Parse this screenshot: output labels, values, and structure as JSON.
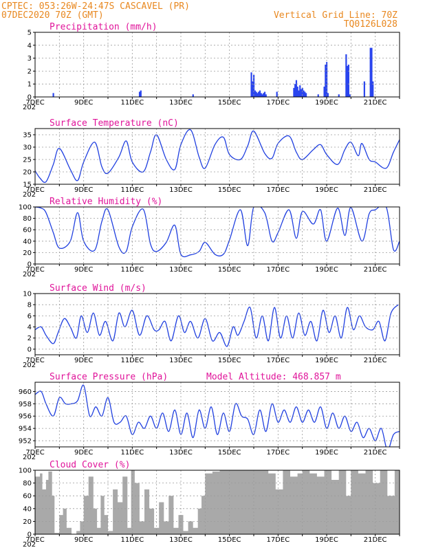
{
  "header": {
    "line1": "CPTEC:  053:26W-24:47S  CASCAVEL (PR)",
    "line2": "07DEC2020 70Z (GMT)",
    "grid_note": "Vertical Grid Line: 70Z",
    "code": "TQ0126L028"
  },
  "x_axis": {
    "range_days": [
      7,
      22
    ],
    "labeled_days": [
      7,
      9,
      11,
      13,
      15,
      17,
      19,
      21
    ],
    "label_suffix": "DEC",
    "year_fragment": "202"
  },
  "panels": [
    {
      "key": "precip",
      "title": "Precipitation (mm/h)",
      "ylim": [
        0,
        5
      ],
      "yticks": [
        0,
        1,
        2,
        3,
        4,
        5
      ]
    },
    {
      "key": "temp",
      "title": "Surface Temperature (nC)",
      "ylim": [
        15,
        37.5
      ],
      "yticks": [
        15,
        20,
        25,
        30,
        35
      ]
    },
    {
      "key": "rh",
      "title": "Relative Humidity (%)",
      "ylim": [
        0,
        100
      ],
      "yticks": [
        0,
        20,
        40,
        60,
        80,
        100
      ]
    },
    {
      "key": "wind",
      "title": "Surface Wind (m/s)",
      "ylim": [
        -1,
        10
      ],
      "yticks": [
        0,
        2,
        4,
        6,
        8,
        10
      ]
    },
    {
      "key": "pres",
      "title": "Surface Pressure (hPa)",
      "subtitle": "Model Altitude: 468.857 m",
      "ylim": [
        951,
        961.5
      ],
      "yticks": [
        952,
        954,
        956,
        958,
        960
      ]
    },
    {
      "key": "cloud",
      "title": "Cloud Cover (%)",
      "ylim": [
        0,
        100
      ],
      "yticks": [
        0,
        20,
        40,
        60,
        80,
        100
      ]
    }
  ],
  "colors": {
    "line": "#1f3fe0",
    "bar": "#2a45ee",
    "cloud": "#a9a9a9",
    "grid": "#9a9a9a",
    "header": "#e8871e",
    "title": "#e0149a"
  },
  "chart_data": [
    {
      "type": "bar",
      "title": "Precipitation (mm/h)",
      "ylim": [
        0,
        5
      ],
      "x": [
        7.75,
        11.3,
        11.35,
        13.5,
        15.9,
        15.95,
        16.0,
        16.05,
        16.1,
        16.15,
        16.2,
        16.25,
        16.3,
        16.35,
        16.4,
        16.45,
        16.5,
        16.95,
        17.65,
        17.7,
        17.75,
        17.8,
        17.85,
        17.9,
        17.95,
        18.0,
        18.05,
        18.1,
        18.15,
        18.65,
        18.9,
        18.95,
        19.0,
        19.05,
        19.5,
        19.8,
        19.85,
        19.9,
        19.95,
        20.55,
        20.8,
        20.85,
        20.9
      ],
      "values": [
        0.3,
        0.4,
        0.5,
        0.2,
        1.9,
        1.2,
        1.7,
        0.5,
        0.4,
        0.3,
        0.4,
        0.5,
        0.3,
        0.2,
        0.3,
        0.4,
        0.2,
        0.4,
        0.7,
        1.0,
        1.3,
        0.8,
        0.5,
        0.9,
        0.6,
        0.7,
        0.5,
        0.4,
        0.3,
        0.2,
        0.8,
        2.5,
        2.7,
        0.3,
        0.2,
        3.3,
        2.4,
        2.5,
        0.2,
        1.2,
        3.8,
        3.8,
        1.2
      ]
    },
    {
      "type": "line",
      "title": "Surface Temperature (nC)",
      "ylim": [
        15,
        37.5
      ],
      "x": [
        7.0,
        7.2,
        7.45,
        7.75,
        8.0,
        8.45,
        8.75,
        9.0,
        9.45,
        9.75,
        10.0,
        10.45,
        10.75,
        11.0,
        11.45,
        11.75,
        12.0,
        12.4,
        12.75,
        13.0,
        13.4,
        13.75,
        14.0,
        14.4,
        14.75,
        15.0,
        15.45,
        15.75,
        16.0,
        16.45,
        16.75,
        17.0,
        17.45,
        17.75,
        18.0,
        18.45,
        18.75,
        19.0,
        19.45,
        19.75,
        20.0,
        20.3,
        20.45,
        20.75,
        21.0,
        21.45,
        21.75,
        22.0
      ],
      "values": [
        20.5,
        17.5,
        16,
        23,
        29.5,
        21,
        16.5,
        24,
        32,
        22,
        19.5,
        26,
        32.5,
        24,
        20,
        28,
        35,
        25,
        21,
        31,
        37,
        26,
        21.5,
        31,
        34,
        27,
        25,
        30.5,
        36.5,
        27.5,
        25.5,
        31.5,
        34.5,
        28,
        25,
        29,
        31,
        27,
        23,
        29,
        32,
        26.5,
        31.5,
        25,
        24,
        21.5,
        28,
        33
      ]
    },
    {
      "type": "line",
      "title": "Relative Humidity (%)",
      "ylim": [
        0,
        100
      ],
      "x": [
        7.0,
        7.25,
        7.45,
        7.75,
        8.0,
        8.45,
        8.75,
        9.0,
        9.45,
        9.75,
        10.0,
        10.45,
        10.75,
        11.0,
        11.45,
        11.75,
        12.0,
        12.4,
        12.75,
        13.0,
        13.4,
        13.75,
        14.0,
        14.4,
        14.75,
        15.0,
        15.45,
        15.75,
        16.0,
        16.45,
        16.75,
        17.0,
        17.45,
        17.75,
        18.0,
        18.45,
        18.75,
        19.0,
        19.45,
        19.75,
        20.0,
        20.45,
        20.75,
        21.0,
        21.45,
        21.75,
        22.0
      ],
      "values": [
        100,
        98,
        90,
        55,
        28,
        40,
        90,
        40,
        24,
        75,
        95,
        30,
        22,
        65,
        96,
        35,
        22,
        38,
        68,
        17,
        16,
        22,
        38,
        17,
        17,
        42,
        95,
        32,
        100,
        90,
        40,
        55,
        95,
        45,
        92,
        70,
        95,
        40,
        98,
        50,
        99,
        40,
        88,
        95,
        100,
        25,
        40
      ]
    },
    {
      "type": "line",
      "title": "Surface Wind (m/s)",
      "ylim": [
        -1,
        10
      ],
      "x": [
        7.0,
        7.25,
        7.45,
        7.75,
        7.95,
        8.2,
        8.45,
        8.7,
        8.9,
        9.15,
        9.4,
        9.65,
        9.9,
        10.2,
        10.45,
        10.7,
        11.0,
        11.3,
        11.6,
        11.9,
        12.1,
        12.35,
        12.6,
        12.9,
        13.15,
        13.4,
        13.7,
        14.0,
        14.3,
        14.6,
        14.9,
        15.15,
        15.35,
        15.6,
        15.85,
        16.1,
        16.35,
        16.6,
        16.85,
        17.1,
        17.35,
        17.6,
        17.85,
        18.1,
        18.35,
        18.6,
        18.85,
        19.1,
        19.35,
        19.6,
        19.85,
        20.1,
        20.35,
        20.6,
        20.9,
        21.15,
        21.4,
        21.65,
        21.95
      ],
      "values": [
        3.5,
        4,
        2.5,
        1,
        3,
        5.5,
        4,
        2,
        6,
        3,
        6.5,
        2.5,
        5,
        1.5,
        6.5,
        4,
        7,
        2.5,
        6,
        3.5,
        3.5,
        5,
        1.5,
        6,
        3,
        5,
        2,
        5.5,
        1.5,
        3,
        0.5,
        4,
        2.5,
        5,
        7.5,
        2,
        6,
        1.5,
        7.5,
        2,
        6,
        2,
        6.5,
        2.5,
        5,
        1.5,
        7,
        3,
        6,
        2,
        7.5,
        3.5,
        6,
        4,
        3.5,
        5,
        1.5,
        6.5,
        8
      ]
    },
    {
      "type": "line",
      "title": "Surface Pressure (hPa)",
      "subtitle": "Model Altitude: 468.857 m",
      "ylim": [
        951,
        961.5
      ],
      "x": [
        7.0,
        7.25,
        7.45,
        7.75,
        8.0,
        8.25,
        8.5,
        8.75,
        9.0,
        9.25,
        9.5,
        9.75,
        10.0,
        10.25,
        10.5,
        10.75,
        11.0,
        11.25,
        11.5,
        11.75,
        12.0,
        12.25,
        12.5,
        12.75,
        13.0,
        13.25,
        13.5,
        13.75,
        14.0,
        14.25,
        14.5,
        14.75,
        15.0,
        15.25,
        15.5,
        15.75,
        16.0,
        16.25,
        16.5,
        16.75,
        17.0,
        17.25,
        17.5,
        17.75,
        18.0,
        18.25,
        18.5,
        18.75,
        19.0,
        19.25,
        19.5,
        19.75,
        20.0,
        20.25,
        20.5,
        20.75,
        21.0,
        21.25,
        21.5,
        21.75,
        22.0
      ],
      "values": [
        959.5,
        960,
        958,
        956,
        959,
        958,
        958,
        958.5,
        961,
        956,
        957.5,
        956,
        959,
        955,
        955,
        956,
        953,
        955,
        954,
        956,
        954,
        956.5,
        953.5,
        957,
        953,
        956.5,
        952.5,
        957,
        954,
        957.5,
        953,
        956.5,
        953.5,
        958,
        956,
        955.5,
        953,
        957,
        953.5,
        958,
        955,
        957,
        955,
        957.5,
        955,
        957,
        955,
        957.5,
        954,
        956.5,
        954,
        956,
        953.5,
        955,
        952.5,
        954,
        952,
        954,
        950.5,
        953,
        953.5
      ]
    },
    {
      "type": "area",
      "title": "Cloud Cover (%)",
      "ylim": [
        0,
        100
      ],
      "x": [
        7.0,
        7.2,
        7.3,
        7.45,
        7.55,
        7.7,
        7.8,
        8.0,
        8.15,
        8.3,
        8.5,
        8.7,
        8.85,
        9.0,
        9.2,
        9.4,
        9.55,
        9.7,
        9.85,
        10.0,
        10.2,
        10.4,
        10.6,
        10.8,
        10.95,
        11.1,
        11.3,
        11.5,
        11.7,
        11.9,
        12.1,
        12.3,
        12.5,
        12.7,
        12.9,
        13.1,
        13.3,
        13.5,
        13.7,
        13.85,
        14.0,
        14.3,
        14.6,
        15.0,
        15.4,
        15.8,
        16.0,
        16.3,
        16.6,
        16.9,
        17.2,
        17.5,
        17.8,
        18.0,
        18.3,
        18.6,
        18.9,
        19.2,
        19.5,
        19.8,
        20.0,
        20.3,
        20.6,
        20.9,
        21.2,
        21.5,
        21.8,
        22.0
      ],
      "values": [
        90,
        95,
        70,
        85,
        98,
        60,
        2,
        30,
        40,
        10,
        0,
        5,
        20,
        60,
        90,
        40,
        10,
        60,
        30,
        5,
        70,
        50,
        90,
        10,
        100,
        80,
        20,
        70,
        40,
        10,
        50,
        20,
        60,
        10,
        30,
        5,
        20,
        10,
        40,
        60,
        95,
        98,
        100,
        100,
        100,
        100,
        100,
        100,
        95,
        70,
        100,
        90,
        95,
        100,
        95,
        90,
        100,
        85,
        100,
        60,
        100,
        95,
        100,
        80,
        100,
        60,
        100,
        100
      ]
    }
  ]
}
